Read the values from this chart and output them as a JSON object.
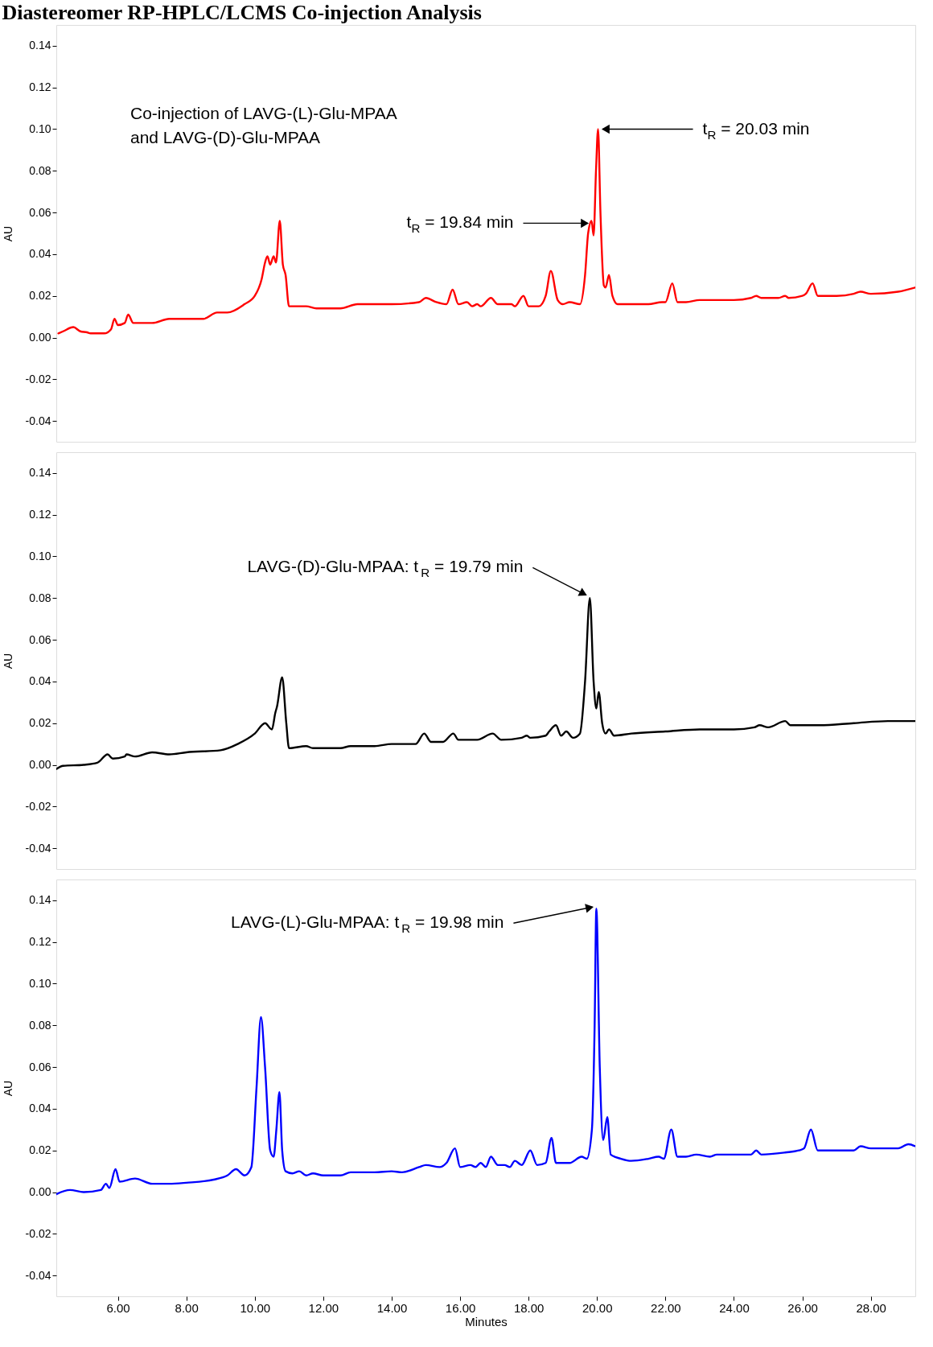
{
  "chart_data": [
    {
      "type": "line",
      "title": "Diastereomer RP-HPLC/LCMS Co-injection Analysis",
      "ylabel": "AU",
      "xlim": [
        4.2,
        29.3
      ],
      "ylim": [
        -0.05,
        0.15
      ],
      "yticks": [
        {
          "value": -0.04,
          "label": "-0.04"
        },
        {
          "value": -0.02,
          "label": "-0.02"
        },
        {
          "value": 0,
          "label": "0.00"
        },
        {
          "value": 0.02,
          "label": "0.02"
        },
        {
          "value": 0.04,
          "label": "0.04"
        },
        {
          "value": 0.06,
          "label": "0.06"
        },
        {
          "value": 0.08,
          "label": "0.08"
        },
        {
          "value": 0.1,
          "label": "0.10"
        },
        {
          "value": 0.12,
          "label": "0.12"
        },
        {
          "value": 0.14,
          "label": "0.14"
        }
      ],
      "tick_labels": "y",
      "grid": false,
      "annotations": [
        "Co-injection of LAVG-(L)-Glu-MPAA\nand LAVG-(D)-Glu-MPAA",
        {
          "text": "t$_{R}$ = 20.03 min",
          "x": 20.03,
          "y": 0.1
        },
        {
          "text": "t$_{R}$ = 19.84 min",
          "x": 19.84,
          "y": 0.056
        }
      ],
      "series": [
        {
          "color": "#ff0000",
          "x": [
            4.26,
            4.4,
            4.7,
            4.9,
            5.1,
            5.2,
            5.6,
            5.8,
            5.9,
            6.0,
            6.2,
            6.3,
            6.45,
            7.0,
            7.5,
            8.5,
            8.9,
            9.2,
            9.7,
            10.0,
            10.2,
            10.3,
            10.37,
            10.45,
            10.55,
            10.62,
            10.73,
            10.82,
            10.9,
            11.0,
            11.3,
            11.5,
            11.8,
            12.5,
            13.0,
            14.0,
            14.8,
            15.0,
            15.3,
            15.6,
            15.78,
            15.95,
            16.2,
            16.35,
            16.5,
            16.6,
            16.9,
            17.1,
            17.5,
            17.6,
            17.85,
            18.0,
            18.3,
            18.5,
            18.65,
            18.85,
            19.0,
            19.2,
            19.5,
            19.65,
            19.74,
            19.84,
            19.9,
            19.97,
            20.03,
            20.1,
            20.2,
            20.25,
            20.35,
            20.45,
            20.6,
            21.0,
            21.5,
            21.9,
            22.0,
            22.2,
            22.35,
            22.6,
            23.0,
            23.5,
            24.0,
            24.5,
            24.65,
            24.8,
            25.3,
            25.5,
            25.6,
            26.0,
            26.1,
            26.3,
            26.45,
            27.0,
            27.5,
            27.7,
            28.0,
            28.8,
            29.3
          ],
          "values": [
            0.002,
            0.003,
            0.005,
            0.003,
            0.0025,
            0.002,
            0.002,
            0.004,
            0.009,
            0.006,
            0.007,
            0.011,
            0.007,
            0.007,
            0.009,
            0.009,
            0.012,
            0.012,
            0.016,
            0.02,
            0.028,
            0.036,
            0.039,
            0.035,
            0.039,
            0.036,
            0.056,
            0.035,
            0.03,
            0.015,
            0.015,
            0.015,
            0.014,
            0.014,
            0.016,
            0.016,
            0.017,
            0.019,
            0.017,
            0.016,
            0.023,
            0.016,
            0.017,
            0.015,
            0.016,
            0.015,
            0.019,
            0.016,
            0.016,
            0.015,
            0.02,
            0.015,
            0.015,
            0.02,
            0.032,
            0.018,
            0.016,
            0.017,
            0.016,
            0.03,
            0.05,
            0.056,
            0.049,
            0.08,
            0.1,
            0.06,
            0.025,
            0.024,
            0.03,
            0.02,
            0.016,
            0.016,
            0.016,
            0.017,
            0.017,
            0.026,
            0.017,
            0.017,
            0.018,
            0.018,
            0.018,
            0.019,
            0.02,
            0.019,
            0.019,
            0.02,
            0.019,
            0.02,
            0.021,
            0.026,
            0.02,
            0.02,
            0.021,
            0.022,
            0.021,
            0.022,
            0.024
          ]
        }
      ]
    },
    {
      "type": "line",
      "ylabel": "AU",
      "xlim": [
        4.2,
        29.3
      ],
      "ylim": [
        -0.05,
        0.15
      ],
      "yticks": [
        {
          "value": -0.04,
          "label": "-0.04"
        },
        {
          "value": -0.02,
          "label": "-0.02"
        },
        {
          "value": 0,
          "label": "0.00"
        },
        {
          "value": 0.02,
          "label": "0.02"
        },
        {
          "value": 0.04,
          "label": "0.04"
        },
        {
          "value": 0.06,
          "label": "0.06"
        },
        {
          "value": 0.08,
          "label": "0.08"
        },
        {
          "value": 0.1,
          "label": "0.10"
        },
        {
          "value": 0.12,
          "label": "0.12"
        },
        {
          "value": 0.14,
          "label": "0.14"
        }
      ],
      "tick_labels": "y",
      "grid": false,
      "annotations": [
        {
          "text": "LAVG-(D)-Glu-MPAA: t$_{R}$ = 19.79 min",
          "x": 19.79,
          "y": 0.08
        }
      ],
      "series": [
        {
          "color": "#000000",
          "x": [
            4.2,
            4.4,
            5.0,
            5.4,
            5.7,
            5.85,
            6.2,
            6.25,
            6.5,
            7.0,
            7.5,
            8.0,
            9.0,
            9.5,
            10.0,
            10.3,
            10.5,
            10.6,
            10.65,
            10.8,
            10.92,
            11.0,
            11.5,
            11.7,
            12.0,
            12.5,
            12.8,
            13.5,
            14.0,
            14.7,
            14.95,
            15.15,
            15.5,
            15.8,
            15.95,
            16.5,
            16.95,
            17.2,
            17.8,
            17.95,
            18.05,
            18.5,
            18.6,
            18.8,
            18.95,
            19.1,
            19.3,
            19.5,
            19.65,
            19.79,
            19.9,
            19.98,
            20.05,
            20.15,
            20.25,
            20.35,
            20.5,
            21.0,
            22.0,
            23.0,
            24.0,
            24.6,
            24.75,
            25.0,
            25.5,
            25.65,
            26.5,
            27.5,
            28.5,
            29.3
          ],
          "values": [
            -0.002,
            -0.0005,
            0.0,
            0.001,
            0.005,
            0.003,
            0.004,
            0.005,
            0.004,
            0.006,
            0.005,
            0.006,
            0.007,
            0.01,
            0.015,
            0.02,
            0.017,
            0.025,
            0.028,
            0.042,
            0.02,
            0.008,
            0.009,
            0.008,
            0.008,
            0.008,
            0.009,
            0.009,
            0.01,
            0.01,
            0.015,
            0.011,
            0.011,
            0.015,
            0.012,
            0.012,
            0.015,
            0.012,
            0.013,
            0.014,
            0.013,
            0.014,
            0.016,
            0.019,
            0.014,
            0.016,
            0.013,
            0.015,
            0.04,
            0.08,
            0.04,
            0.027,
            0.035,
            0.02,
            0.015,
            0.017,
            0.014,
            0.015,
            0.016,
            0.017,
            0.017,
            0.018,
            0.019,
            0.018,
            0.021,
            0.019,
            0.019,
            0.02,
            0.021,
            0.021
          ]
        }
      ]
    },
    {
      "type": "line",
      "xlabel": "Minutes",
      "ylabel": "AU",
      "xlim": [
        4.2,
        29.3
      ],
      "ylim": [
        -0.05,
        0.15
      ],
      "xticks": [
        {
          "value": 6,
          "label": "6.00"
        },
        {
          "value": 8,
          "label": "8.00"
        },
        {
          "value": 10,
          "label": "10.00"
        },
        {
          "value": 12,
          "label": "12.00"
        },
        {
          "value": 14,
          "label": "14.00"
        },
        {
          "value": 16,
          "label": "16.00"
        },
        {
          "value": 18,
          "label": "18.00"
        },
        {
          "value": 20,
          "label": "20.00"
        },
        {
          "value": 22,
          "label": "22.00"
        },
        {
          "value": 24,
          "label": "24.00"
        },
        {
          "value": 26,
          "label": "26.00"
        },
        {
          "value": 28,
          "label": "28.00"
        }
      ],
      "yticks": [
        {
          "value": -0.04,
          "label": "-0.04"
        },
        {
          "value": -0.02,
          "label": "-0.02"
        },
        {
          "value": 0,
          "label": "0.00"
        },
        {
          "value": 0.02,
          "label": "0.02"
        },
        {
          "value": 0.04,
          "label": "0.04"
        },
        {
          "value": 0.06,
          "label": "0.06"
        },
        {
          "value": 0.08,
          "label": "0.08"
        },
        {
          "value": 0.1,
          "label": "0.10"
        },
        {
          "value": 0.12,
          "label": "0.12"
        },
        {
          "value": 0.14,
          "label": "0.14"
        }
      ],
      "grid": false,
      "annotations": [
        {
          "text": "LAVG-(L)-Glu-MPAA: t$_{R}$ = 19.98 min",
          "x": 19.98,
          "y": 0.136
        }
      ],
      "series": [
        {
          "color": "#0000ff",
          "x": [
            4.2,
            4.6,
            5.0,
            5.5,
            5.65,
            5.75,
            5.93,
            6.05,
            6.5,
            7.0,
            7.5,
            8.0,
            8.8,
            9.2,
            9.45,
            9.7,
            9.9,
            10.05,
            10.18,
            10.3,
            10.45,
            10.55,
            10.63,
            10.72,
            10.8,
            10.9,
            11.1,
            11.3,
            11.5,
            11.7,
            12.0,
            12.5,
            12.8,
            13.5,
            14.0,
            14.3,
            14.8,
            15.0,
            15.4,
            15.6,
            15.85,
            16.0,
            16.3,
            16.45,
            16.6,
            16.75,
            16.9,
            17.1,
            17.3,
            17.45,
            17.6,
            17.8,
            18.05,
            18.25,
            18.5,
            18.67,
            18.8,
            19.2,
            19.55,
            19.7,
            19.85,
            19.93,
            19.98,
            20.08,
            20.18,
            20.3,
            20.4,
            20.7,
            21.0,
            21.5,
            21.8,
            21.95,
            22.17,
            22.35,
            22.6,
            22.9,
            23.3,
            23.5,
            24.0,
            24.5,
            24.65,
            24.8,
            25.5,
            25.9,
            26.05,
            26.25,
            26.45,
            27.0,
            27.5,
            27.7,
            28.0,
            28.8,
            29.1,
            29.3
          ],
          "values": [
            -0.001,
            0.001,
            0.0,
            0.001,
            0.004,
            0.002,
            0.011,
            0.005,
            0.0065,
            0.004,
            0.004,
            0.0045,
            0.006,
            0.008,
            0.011,
            0.008,
            0.012,
            0.05,
            0.084,
            0.06,
            0.02,
            0.017,
            0.03,
            0.048,
            0.02,
            0.01,
            0.009,
            0.01,
            0.008,
            0.009,
            0.008,
            0.008,
            0.0095,
            0.0095,
            0.01,
            0.0095,
            0.012,
            0.013,
            0.012,
            0.014,
            0.021,
            0.012,
            0.013,
            0.012,
            0.014,
            0.012,
            0.017,
            0.013,
            0.013,
            0.012,
            0.015,
            0.013,
            0.02,
            0.013,
            0.014,
            0.026,
            0.014,
            0.014,
            0.017,
            0.016,
            0.03,
            0.08,
            0.136,
            0.06,
            0.025,
            0.036,
            0.018,
            0.016,
            0.015,
            0.016,
            0.017,
            0.016,
            0.03,
            0.017,
            0.017,
            0.018,
            0.017,
            0.018,
            0.018,
            0.018,
            0.02,
            0.018,
            0.019,
            0.02,
            0.021,
            0.03,
            0.02,
            0.02,
            0.02,
            0.022,
            0.021,
            0.021,
            0.023,
            0.022
          ]
        }
      ]
    }
  ]
}
